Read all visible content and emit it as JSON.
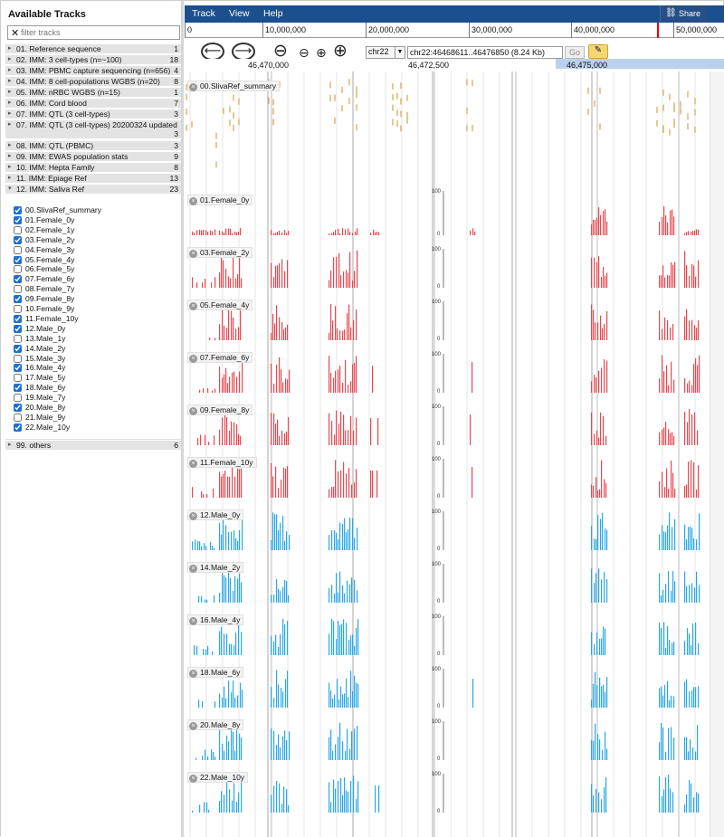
{
  "sidebar": {
    "title": "Available Tracks",
    "filter_placeholder": "filter tracks",
    "categories": [
      {
        "label": "01. Reference sequence",
        "count": "1"
      },
      {
        "label": "02. IMM: 3 cell-types (n=~100)",
        "count": "18"
      },
      {
        "label": "03. IMM: PBMC capture sequencing (n=656)",
        "count": "4"
      },
      {
        "label": "04. IMM: 8 cell-populations WGBS (n=20)",
        "count": "8"
      },
      {
        "label": "05. IMM: nRBC WGBS (n=15)",
        "count": "1"
      },
      {
        "label": "06. IMM: Cord blood",
        "count": "7"
      },
      {
        "label": "07. IMM: QTL (3 cell-types)",
        "count": "3"
      },
      {
        "label": "07. IMM: QTL (3 cell-types) 20200324 updated",
        "count": "3"
      },
      {
        "label": "08. IMM: QTL (PBMC)",
        "count": "3"
      },
      {
        "label": "09. IMM: EWAS population stats",
        "count": "9"
      },
      {
        "label": "10. IMM: Hepta Family",
        "count": "8"
      },
      {
        "label": "11. IMM: Epiage Ref",
        "count": "13"
      },
      {
        "label": "12. IMM: Saliva Ref",
        "count": "23"
      },
      {
        "label": "99. others",
        "count": "6"
      }
    ],
    "tracks": [
      {
        "label": "00.SlivaRef_summary",
        "checked": true
      },
      {
        "label": "01.Female_0y",
        "checked": true
      },
      {
        "label": "02.Female_1y",
        "checked": false
      },
      {
        "label": "03.Female_2y",
        "checked": true
      },
      {
        "label": "04.Female_3y",
        "checked": false
      },
      {
        "label": "05.Female_4y",
        "checked": true
      },
      {
        "label": "06.Female_5y",
        "checked": false
      },
      {
        "label": "07.Female_6y",
        "checked": true
      },
      {
        "label": "08.Female_7y",
        "checked": false
      },
      {
        "label": "09.Female_8y",
        "checked": true
      },
      {
        "label": "10.Female_9y",
        "checked": false
      },
      {
        "label": "11.Female_10y",
        "checked": true
      },
      {
        "label": "12.Male_0y",
        "checked": true
      },
      {
        "label": "13.Male_1y",
        "checked": false
      },
      {
        "label": "14.Male_2y",
        "checked": true
      },
      {
        "label": "15.Male_3y",
        "checked": false
      },
      {
        "label": "16.Male_4y",
        "checked": true
      },
      {
        "label": "17.Male_5y",
        "checked": false
      },
      {
        "label": "18.Male_6y",
        "checked": true
      },
      {
        "label": "19.Male_7y",
        "checked": false
      },
      {
        "label": "20.Male_8y",
        "checked": true
      },
      {
        "label": "21.Male_9y",
        "checked": false
      },
      {
        "label": "22.Male_10y",
        "checked": true
      }
    ]
  },
  "menu": {
    "track": "Track",
    "view": "View",
    "help": "Help",
    "share": "Share",
    "share_icon": "link-icon"
  },
  "overview": {
    "labels": [
      "0",
      "10,000,000",
      "20,000,000",
      "30,000,000",
      "40,000,000",
      "50,000,000"
    ]
  },
  "nav": {
    "back_icon": "arrow-left-icon",
    "forward_icon": "arrow-right-icon",
    "chromosome": "chr22",
    "location": "chr22:46468611..46476850 (8.24 Kb)",
    "go": "Go"
  },
  "ruler": {
    "labels": [
      "46,470,000",
      "46,472,500",
      "46,475,000"
    ]
  },
  "display": {
    "summary_track": "00.SlivaRef_summary",
    "female_color": "#e8484f",
    "male_color": "#2aa7e6",
    "summary_color": "#d9a24e",
    "scale_max": "100",
    "scale_min": "0",
    "tracks": [
      {
        "label": "01.Female_0y",
        "sex": "female"
      },
      {
        "label": "03.Female_2y",
        "sex": "female"
      },
      {
        "label": "05.Female_4y",
        "sex": "female"
      },
      {
        "label": "07.Female_6y",
        "sex": "female"
      },
      {
        "label": "09.Female_8y",
        "sex": "female"
      },
      {
        "label": "11.Female_10y",
        "sex": "female"
      },
      {
        "label": "12.Male_0y",
        "sex": "male"
      },
      {
        "label": "14.Male_2y",
        "sex": "male"
      },
      {
        "label": "16.Male_4y",
        "sex": "male"
      },
      {
        "label": "18.Male_6y",
        "sex": "male"
      },
      {
        "label": "20.Male_8y",
        "sex": "male"
      },
      {
        "label": "22.Male_10y",
        "sex": "male"
      }
    ]
  }
}
